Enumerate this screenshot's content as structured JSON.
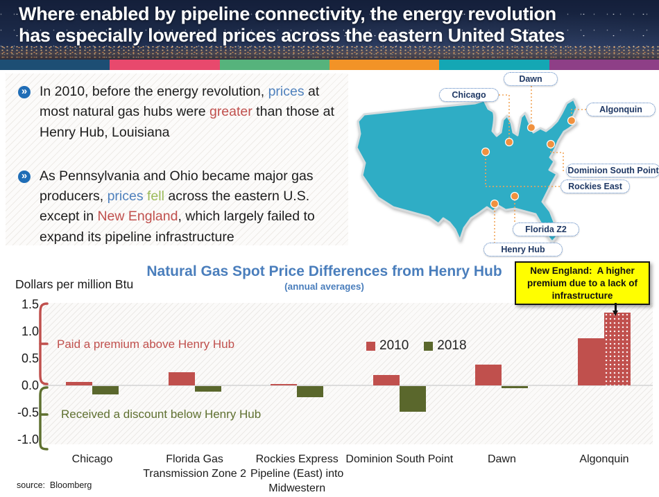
{
  "header": {
    "title_line1": "Where enabled by pipeline connectivity, the energy revolution",
    "title_line2": "has especially lowered prices across the eastern United States",
    "stripe_colors": [
      "#1d4e74",
      "#e8496d",
      "#56b37c",
      "#f29327",
      "#14a7b4",
      "#8e3f87"
    ]
  },
  "bullets": [
    {
      "segments": [
        {
          "text": "In 2010, before the energy revolution, "
        },
        {
          "text": "prices",
          "color": "blue"
        },
        {
          "text": " at most natural gas hubs were "
        },
        {
          "text": "greater",
          "color": "red"
        },
        {
          "text": " than those at Henry Hub, Louisiana"
        }
      ]
    },
    {
      "segments": [
        {
          "text": "As Pennsylvania and Ohio became major gas producers, "
        },
        {
          "text": "prices",
          "color": "blue"
        },
        {
          "text": " "
        },
        {
          "text": "fell",
          "color": "green"
        },
        {
          "text": " across the eastern U.S. except in "
        },
        {
          "text": "New England",
          "color": "red"
        },
        {
          "text": ", which largely failed to expand its pipeline infrastructure"
        }
      ]
    }
  ],
  "map": {
    "land_color": "#2fadc5",
    "dot_color": "#f0913f",
    "hubs": [
      {
        "label": "Dawn"
      },
      {
        "label": "Chicago"
      },
      {
        "label": "Algonquin"
      },
      {
        "label": "Dominion South Point"
      },
      {
        "label": "Rockies East"
      },
      {
        "label": "Florida Z2"
      },
      {
        "label": "Henry Hub"
      }
    ]
  },
  "chart_data": {
    "type": "bar",
    "title": "Natural Gas Spot Price Differences from Henry Hub",
    "subtitle": "(annual averages)",
    "ylabel": "Dollars per million Btu",
    "categories": [
      "Chicago",
      "Florida Gas Transmission Zone 2",
      "Rockies Express Pipeline (East) into Midwestern",
      "Dominion South Point",
      "Dawn",
      "Algonquin"
    ],
    "series": [
      {
        "name": "2010",
        "color": "#c0504d",
        "values": [
          0.06,
          0.25,
          0.03,
          0.19,
          0.38,
          0.87
        ]
      },
      {
        "name": "2018",
        "color": "#5a672c",
        "values": [
          -0.16,
          -0.1,
          -0.2,
          -0.48,
          -0.04,
          1.34
        ]
      }
    ],
    "highlight": {
      "category_index": 5,
      "series_index": 1,
      "style": "red-dotted",
      "color": "#c0504d"
    },
    "ylim": [
      -1.0,
      1.5
    ],
    "yticks": [
      "1.5",
      "1.0",
      "0.5",
      "0.0",
      "-0.5",
      "-1.0"
    ],
    "grid": false,
    "legend_position": "center-right",
    "annotations": {
      "premium_label": "Paid a premium above Henry Hub",
      "discount_label": "Received a discount below Henry Hub",
      "callout": "New England:  A higher premium due to a lack of infrastructure"
    }
  },
  "source": "source:  Bloomberg"
}
